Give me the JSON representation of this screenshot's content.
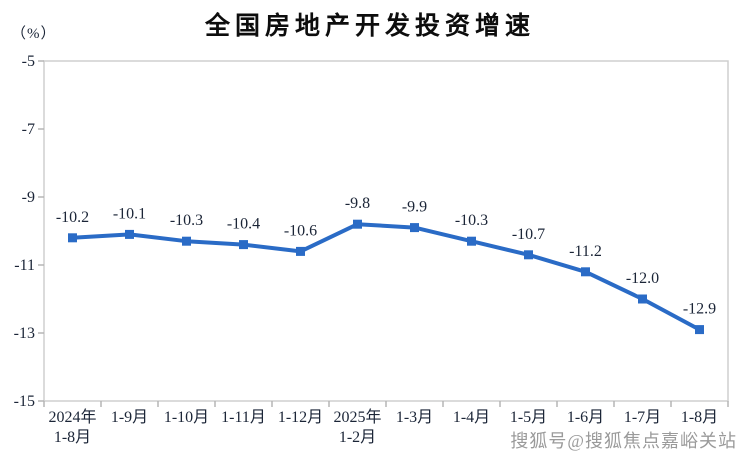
{
  "header": {
    "title": "全国房地产开发投资增速",
    "unit_label": "（%）"
  },
  "chart_data": {
    "type": "line",
    "title": "全国房地产开发投资增速",
    "ylabel": "(%)",
    "xlabel": "",
    "categories": [
      [
        "2024年",
        "1-8月"
      ],
      [
        "1-9月"
      ],
      [
        "1-10月"
      ],
      [
        "1-11月"
      ],
      [
        "1-12月"
      ],
      [
        "2025年",
        "1-2月"
      ],
      [
        "1-3月"
      ],
      [
        "1-4月"
      ],
      [
        "1-5月"
      ],
      [
        "1-6月"
      ],
      [
        "1-7月"
      ],
      [
        "1-8月"
      ]
    ],
    "values": [
      -10.2,
      -10.1,
      -10.3,
      -10.4,
      -10.6,
      -9.8,
      -9.9,
      -10.3,
      -10.7,
      -11.2,
      -12.0,
      -12.9
    ],
    "data_labels": [
      "-10.2",
      "-10.1",
      "-10.3",
      "-10.4",
      "-10.6",
      "-9.8",
      "-9.9",
      "-10.3",
      "-10.7",
      "-11.2",
      "-12.0",
      "-12.9"
    ],
    "ylim": [
      -15,
      -5
    ],
    "yticks": [
      -5,
      -7,
      -9,
      -11,
      -13,
      -15
    ],
    "grid": false,
    "legend": "none",
    "marker": "square",
    "line_color": "#2a6bc6"
  },
  "watermark": {
    "text": "搜狐号@搜狐焦点嘉峪关站"
  },
  "colors": {
    "title_text": "#0d0d0d",
    "axis_text": "#1b2537",
    "plot_border": "#cfcfcf",
    "tick_mark": "#b5b5b5",
    "line": "#2a6bc6",
    "watermark_text": "#9a9a9a",
    "background": "#ffffff"
  }
}
